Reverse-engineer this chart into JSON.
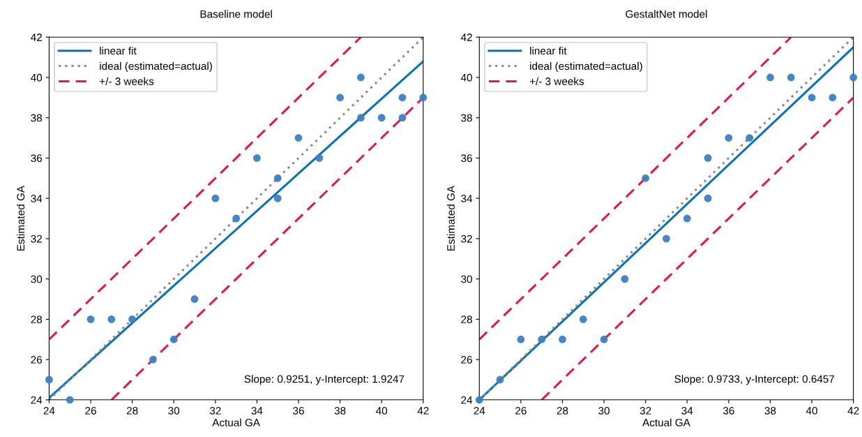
{
  "chart_data": [
    {
      "type": "scatter",
      "title": "Baseline model",
      "xlabel": "Actual GA",
      "ylabel": "Estimated GA",
      "xlim": [
        24,
        42
      ],
      "ylim": [
        24,
        42
      ],
      "xticks": [
        24,
        26,
        28,
        30,
        32,
        34,
        36,
        38,
        40,
        42
      ],
      "yticks": [
        24,
        26,
        28,
        30,
        32,
        34,
        36,
        38,
        40,
        42
      ],
      "legend": "top left",
      "grid": false,
      "annotations": [
        "Slope: 0.9251, y-Intercept: 1.9247"
      ],
      "series": [
        {
          "color": "#3d7fc1",
          "marker": "circle",
          "x": [
            24,
            25,
            26,
            27,
            28,
            29,
            30,
            31,
            32,
            33,
            34,
            35,
            35,
            36,
            37,
            38,
            39,
            39,
            40,
            41,
            41,
            42
          ],
          "values": [
            25,
            24,
            28,
            28,
            28,
            26,
            27,
            29,
            34,
            33,
            36,
            35,
            34,
            37,
            36,
            39,
            40,
            38,
            38,
            39,
            38,
            39
          ]
        },
        {
          "type": "line",
          "name": "linear fit",
          "color": "#0a72b8",
          "line_style": "solid",
          "x": [
            24,
            42
          ],
          "values": [
            24.1,
            40.8
          ]
        },
        {
          "type": "line",
          "name": "ideal (estimated=actual)",
          "color": "#888888",
          "line_style": "dotted",
          "x": [
            24,
            42
          ],
          "values": [
            24,
            42
          ]
        },
        {
          "type": "line",
          "name": "+/- 3 weeks",
          "color": "#e3174b",
          "line_style": "dashed",
          "x": [
            24,
            39
          ],
          "values": [
            27,
            42
          ]
        },
        {
          "type": "line",
          "color": "#e3174b",
          "line_style": "dashed",
          "x": [
            27,
            42
          ],
          "values": [
            24,
            39
          ]
        }
      ]
    },
    {
      "type": "scatter",
      "title": "GestaltNet model",
      "xlabel": "Actual GA",
      "ylabel": "Estimated GA",
      "xlim": [
        24,
        42
      ],
      "ylim": [
        24,
        42
      ],
      "xticks": [
        24,
        26,
        28,
        30,
        32,
        34,
        36,
        38,
        40,
        42
      ],
      "yticks": [
        24,
        26,
        28,
        30,
        32,
        34,
        36,
        38,
        40,
        42
      ],
      "legend": "top left",
      "grid": false,
      "annotations": [
        "Slope: 0.9733, y-Intercept: 0.6457"
      ],
      "series": [
        {
          "color": "#3d7fc1",
          "marker": "circle",
          "x": [
            24,
            25,
            26,
            27,
            28,
            29,
            30,
            31,
            32,
            33,
            34,
            35,
            35,
            36,
            37,
            38,
            39,
            40,
            41,
            42
          ],
          "values": [
            24,
            25,
            27,
            27,
            27,
            28,
            27,
            30,
            35,
            32,
            33,
            36,
            34,
            37,
            37,
            40,
            40,
            39,
            39,
            40
          ]
        },
        {
          "type": "line",
          "name": "linear fit",
          "color": "#0a72b8",
          "line_style": "solid",
          "x": [
            24,
            42
          ],
          "values": [
            24.0,
            41.5
          ]
        },
        {
          "type": "line",
          "name": "ideal (estimated=actual)",
          "color": "#888888",
          "line_style": "dotted",
          "x": [
            24,
            42
          ],
          "values": [
            24,
            42
          ]
        },
        {
          "type": "line",
          "name": "+/- 3 weeks",
          "color": "#e3174b",
          "line_style": "dashed",
          "x": [
            24,
            39
          ],
          "values": [
            27,
            42
          ]
        },
        {
          "type": "line",
          "color": "#e3174b",
          "line_style": "dashed",
          "x": [
            27,
            42
          ],
          "values": [
            24,
            39
          ]
        }
      ]
    }
  ]
}
